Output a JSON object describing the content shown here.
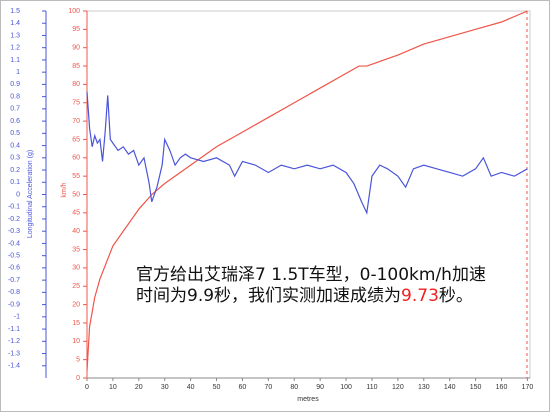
{
  "chart_data": {
    "type": "line",
    "xlabel": "metres",
    "ylabel": "Longitudinal Acceleration (g)",
    "y2label": "km/h",
    "annotation": [
      "官方给出艾瑞泽7 1.5T车型，0-100km/h加速",
      "时间为9.9秒，我们实测加速成绩为",
      "9.73",
      "秒。"
    ],
    "xlim": [
      0,
      171
    ],
    "xticks": [
      0,
      10,
      20,
      30,
      40,
      50,
      60,
      70,
      80,
      90,
      100,
      110,
      120,
      130,
      140,
      150,
      160,
      170
    ],
    "ylim": [
      -1.5,
      1.5
    ],
    "yticks": [
      1.5,
      1.4,
      1.3,
      1.2,
      1.1,
      1,
      0.9,
      0.8,
      0.7,
      0.6,
      0.5,
      0.4,
      0.3,
      0.2,
      0.1,
      0,
      -0.1,
      -0.2,
      -0.3,
      -0.4,
      -0.5,
      -0.6,
      -0.7,
      -0.8,
      -0.9,
      -1,
      -1.1,
      -1.2,
      -1.3,
      -1.4
    ],
    "y2lim": [
      0,
      100
    ],
    "y2ticks": [
      100,
      95,
      90,
      85,
      80,
      75,
      70,
      65,
      60,
      55,
      50,
      45,
      40,
      35,
      30,
      25,
      20,
      15,
      10,
      5,
      0
    ],
    "series": [
      {
        "name": "km/h",
        "color": "#f0554a",
        "axis": "y2",
        "x": [
          0,
          1,
          3,
          5,
          10,
          15,
          20,
          25,
          30,
          40,
          50,
          60,
          70,
          80,
          90,
          100,
          105,
          108,
          112,
          120,
          130,
          140,
          150,
          160,
          170
        ],
        "values": [
          2,
          14,
          22,
          27,
          36,
          41,
          46,
          50,
          53,
          58,
          63,
          67,
          71,
          75,
          79,
          83,
          85,
          85,
          86,
          88,
          91,
          93,
          95,
          97,
          100
        ]
      },
      {
        "name": "Longitudinal Acceleration (g)",
        "color": "#4a55d8",
        "axis": "y",
        "x": [
          0,
          1,
          2,
          3,
          4,
          5,
          6,
          7,
          8,
          9,
          10,
          12,
          14,
          16,
          18,
          20,
          22,
          24,
          25,
          27,
          29,
          30,
          32,
          34,
          36,
          38,
          40,
          45,
          50,
          55,
          57,
          60,
          65,
          70,
          75,
          80,
          85,
          90,
          95,
          100,
          103,
          106,
          108,
          110,
          113,
          116,
          120,
          123,
          126,
          130,
          135,
          140,
          145,
          150,
          153,
          156,
          160,
          165,
          170
        ],
        "values": [
          0.84,
          0.54,
          0.39,
          0.48,
          0.42,
          0.45,
          0.27,
          0.51,
          0.81,
          0.45,
          0.42,
          0.36,
          0.39,
          0.33,
          0.36,
          0.24,
          0.3,
          0.09,
          -0.06,
          0.06,
          0.24,
          0.45,
          0.36,
          0.24,
          0.3,
          0.33,
          0.3,
          0.27,
          0.3,
          0.24,
          0.15,
          0.27,
          0.24,
          0.18,
          0.24,
          0.21,
          0.24,
          0.21,
          0.24,
          0.18,
          0.09,
          -0.06,
          -0.15,
          0.15,
          0.24,
          0.21,
          0.15,
          0.06,
          0.21,
          0.24,
          0.21,
          0.18,
          0.15,
          0.21,
          0.3,
          0.15,
          0.18,
          0.15,
          0.21
        ]
      }
    ]
  }
}
